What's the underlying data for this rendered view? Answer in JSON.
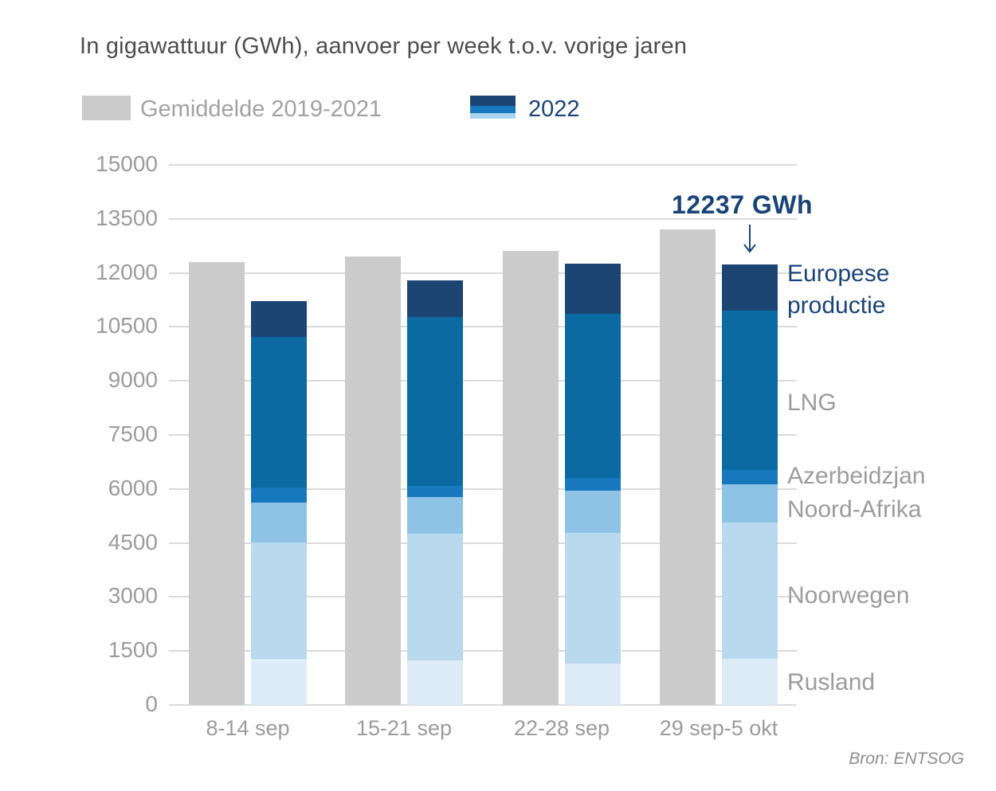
{
  "title": "In gigawattuur (GWh), aanvoer per week t.o.v. vorige jaren",
  "legend": {
    "avg_label": "Gemiddelde 2019-2021",
    "year_label": "2022"
  },
  "annotation": "12237 GWh",
  "source": "Bron: ENTSOG",
  "colors": {
    "average_bar": "#cbcbcb",
    "gridline": "#dadada",
    "axis_text": "#9c9c9c",
    "title_text": "#4d4d4d",
    "accent_text": "#1a4478",
    "rusland": "#dcebf6",
    "noorwegen": "#b9d9ef",
    "noord_afrika": "#8ec3e6",
    "azerbeidzjan": "#1878bd",
    "lng": "#0a6aa1",
    "europese_productie": "#1d4574"
  },
  "chart_data": {
    "type": "bar",
    "subtype": "grouped-average-vs-stacked-2022",
    "title": "In gigawattuur (GWh), aanvoer per week t.o.v. vorige jaren",
    "xlabel": "",
    "ylabel": "GWh",
    "ylim": [
      0,
      15000
    ],
    "ytick_step": 1500,
    "yticks": [
      0,
      1500,
      3000,
      4500,
      6000,
      7500,
      9000,
      10500,
      12000,
      13500,
      15000
    ],
    "grid": true,
    "legend_position": "top",
    "categories": [
      "8-14 sep",
      "15-21 sep",
      "22-28 sep",
      "29 sep-5 okt"
    ],
    "average_series": {
      "name": "Gemiddelde 2019-2021",
      "color": "#cbcbcb",
      "values": [
        12300,
        12450,
        12600,
        13200
      ]
    },
    "stacked_series_2022_bottom_to_top": [
      {
        "name": "Rusland",
        "color": "#dcebf6",
        "values": [
          1250,
          1230,
          1160,
          1290
        ]
      },
      {
        "name": "Noorwegen",
        "color": "#b9d9ef",
        "values": [
          3270,
          3530,
          3620,
          3780
        ]
      },
      {
        "name": "Noord-Afrika",
        "color": "#8ec3e6",
        "values": [
          1090,
          1010,
          1170,
          1050
        ]
      },
      {
        "name": "Azerbeidzjan",
        "color": "#1878bd",
        "values": [
          420,
          310,
          350,
          410
        ]
      },
      {
        "name": "LNG",
        "color": "#0a6aa1",
        "values": [
          4190,
          4690,
          4560,
          4420
        ]
      },
      {
        "name": "Europese productie",
        "color": "#1d4574",
        "values": [
          1000,
          1030,
          1390,
          1287
        ]
      }
    ],
    "totals_2022": [
      11220,
      11800,
      12250,
      12237
    ],
    "annotation": {
      "text": "12237 GWh",
      "target_category": "29 sep-5 okt"
    },
    "right_labels": [
      {
        "text": "Europese productie",
        "role": "accent"
      },
      {
        "text": "LNG",
        "role": "gray"
      },
      {
        "text": "Azerbeidzjan",
        "role": "gray"
      },
      {
        "text": "Noord-Afrika",
        "role": "gray"
      },
      {
        "text": "Noorwegen",
        "role": "gray"
      },
      {
        "text": "Rusland",
        "role": "gray"
      }
    ]
  }
}
